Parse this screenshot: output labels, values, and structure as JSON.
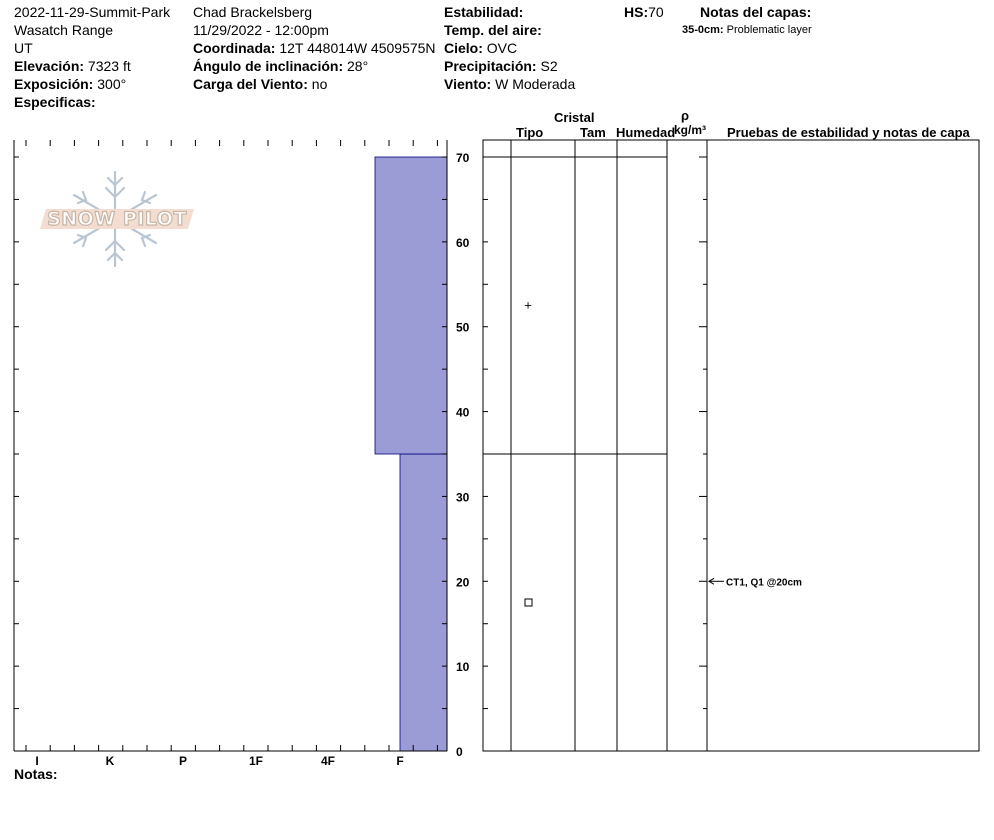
{
  "header": {
    "col1": {
      "site": "2022-11-29-Summit-Park",
      "range": "Wasatch Range",
      "state": "UT",
      "elev_label": "Elevación:",
      "elev_value": "7323 ft",
      "aspect_label": "Exposición:",
      "aspect_value": "300°",
      "specifics_label": "Especificas:"
    },
    "col2": {
      "observer": "Chad Brackelsberg",
      "datetime": "11/29/2022 - 12:00pm",
      "coord_label": "Coordinada:",
      "coord_value": "12T 448014W 4509575N",
      "slope_label": "Ángulo de inclinación:",
      "slope_value": "28°",
      "windload_label": "Carga del Viento:",
      "windload_value": "no"
    },
    "col3": {
      "stability_label": "Estabilidad:",
      "airtemp_label": "Temp. del aire:",
      "sky_label": "Cielo:",
      "sky_value": "OVC",
      "precip_label": "Precipitación:",
      "precip_value": "S2",
      "wind_label": "Viento:",
      "wind_value": "W Moderada"
    },
    "hs_label": "HS:",
    "hs_value": "70",
    "layer_notes_label": "Notas del capas:",
    "layer_note_depth": "35-0cm:",
    "layer_note_text": "Problematic layer"
  },
  "logo": {
    "text": "SNOW PILOT"
  },
  "table_headers": {
    "crystal": "Cristal",
    "type": "Tipo",
    "size": "Tam",
    "moisture": "Humedad",
    "rho": "ρ",
    "density_unit": "kg/m³",
    "tests": "Pruebas de estabilidad y notas de capa"
  },
  "chart_data": {
    "type": "bar",
    "title": "",
    "x_axis_categories": [
      "I",
      "K",
      "P",
      "1F",
      "4F",
      "F"
    ],
    "y_axis_label": "",
    "y_ticks": [
      "0",
      "10",
      "20",
      "30",
      "40",
      "50",
      "60",
      "70"
    ],
    "ylim": [
      0,
      70
    ],
    "series": [
      {
        "segments": [
          {
            "bottom": 0,
            "top": 35,
            "hardness": "F"
          },
          {
            "bottom": 35,
            "top": 70,
            "hardness": "F+"
          }
        ]
      }
    ],
    "fill_color": "#9b9bd6"
  },
  "layers": {
    "boundaries": [
      70,
      35
    ],
    "grain_symbols": [
      {
        "depth": 52.5,
        "symbol": "+"
      },
      {
        "depth": 17.5,
        "symbol": "□"
      }
    ]
  },
  "stability_tests": [
    {
      "depth": 20,
      "text": "CT1, Q1 @20cm"
    }
  ],
  "footer": {
    "notes_label": "Notas:"
  }
}
